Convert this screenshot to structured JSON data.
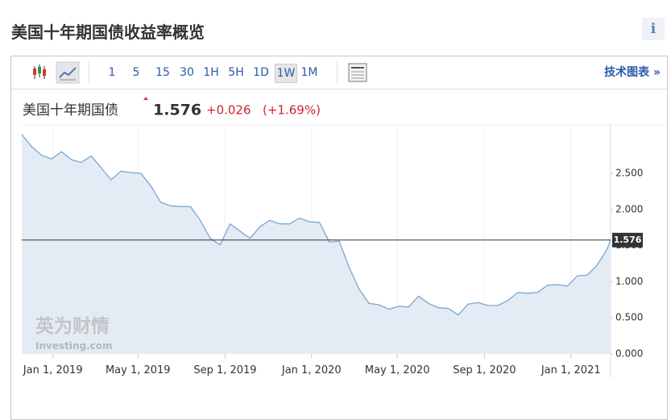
{
  "title": "美国十年期国债收益率概览",
  "info": "i",
  "toolbar": {
    "intervals": [
      "1",
      "5",
      "15",
      "30",
      "1H",
      "5H",
      "1D",
      "1W",
      "1M"
    ],
    "selected": "1W",
    "link": "技术图表 »"
  },
  "quote": {
    "name": "美国十年期国债",
    "price": "1.576",
    "change": "+0.026",
    "change_pct": "(+1.69%)"
  },
  "watermark": {
    "brand": "英为财情",
    "site": "Investing.com"
  },
  "chart_data": {
    "type": "area",
    "x": [
      "2018-11-18",
      "2018-12-02",
      "2018-12-16",
      "2018-12-30",
      "2019-01-13",
      "2019-01-27",
      "2019-02-10",
      "2019-02-24",
      "2019-03-10",
      "2019-03-24",
      "2019-04-07",
      "2019-04-21",
      "2019-05-05",
      "2019-05-19",
      "2019-06-02",
      "2019-06-16",
      "2019-06-30",
      "2019-07-14",
      "2019-07-28",
      "2019-08-11",
      "2019-08-25",
      "2019-09-08",
      "2019-09-22",
      "2019-10-06",
      "2019-10-20",
      "2019-11-03",
      "2019-11-17",
      "2019-12-01",
      "2019-12-15",
      "2019-12-29",
      "2020-01-12",
      "2020-01-26",
      "2020-02-09",
      "2020-02-23",
      "2020-03-08",
      "2020-03-22",
      "2020-04-05",
      "2020-04-19",
      "2020-05-03",
      "2020-05-17",
      "2020-05-31",
      "2020-06-14",
      "2020-06-28",
      "2020-07-12",
      "2020-07-26",
      "2020-08-09",
      "2020-08-23",
      "2020-09-06",
      "2020-09-20",
      "2020-10-04",
      "2020-10-18",
      "2020-11-01",
      "2020-11-15",
      "2020-11-29",
      "2020-12-13",
      "2020-12-27",
      "2021-01-10",
      "2021-01-24",
      "2021-02-07",
      "2021-02-21",
      "2021-02-26"
    ],
    "series": [
      {
        "name": "美国十年期国债",
        "color": "#7aa6cf",
        "values": [
          3.04,
          2.87,
          2.75,
          2.7,
          2.8,
          2.69,
          2.65,
          2.74,
          2.58,
          2.41,
          2.53,
          2.51,
          2.5,
          2.33,
          2.1,
          2.05,
          2.04,
          2.04,
          1.85,
          1.6,
          1.51,
          1.8,
          1.7,
          1.6,
          1.76,
          1.85,
          1.8,
          1.8,
          1.88,
          1.83,
          1.82,
          1.55,
          1.56,
          1.2,
          0.9,
          0.7,
          0.68,
          0.62,
          0.66,
          0.65,
          0.8,
          0.7,
          0.64,
          0.63,
          0.54,
          0.69,
          0.71,
          0.67,
          0.67,
          0.74,
          0.85,
          0.84,
          0.85,
          0.95,
          0.96,
          0.94,
          1.08,
          1.09,
          1.23,
          1.45,
          1.576
        ]
      }
    ],
    "xlim": [
      "2018-11-18",
      "2021-02-26"
    ],
    "xticks": [
      {
        "value": "2019-01-01",
        "label": "Jan 1, 2019"
      },
      {
        "value": "2019-05-01",
        "label": "May 1, 2019"
      },
      {
        "value": "2019-09-01",
        "label": "Sep 1, 2019"
      },
      {
        "value": "2020-01-01",
        "label": "Jan 1, 2020"
      },
      {
        "value": "2020-05-01",
        "label": "May 1, 2020"
      },
      {
        "value": "2020-09-01",
        "label": "Sep 1, 2020"
      },
      {
        "value": "2021-01-01",
        "label": "Jan 1, 2021"
      }
    ],
    "ylim": [
      0,
      3.17
    ],
    "yticks": [
      {
        "value": 0,
        "label": "0.000"
      },
      {
        "value": 0.5,
        "label": "0.500"
      },
      {
        "value": 1,
        "label": "1.000"
      },
      {
        "value": 1.5,
        "label": "1.500"
      },
      {
        "value": 2,
        "label": "2.000"
      },
      {
        "value": 2.5,
        "label": "2.500"
      }
    ],
    "fill_color": "#e3ecf4",
    "grid": true
  }
}
